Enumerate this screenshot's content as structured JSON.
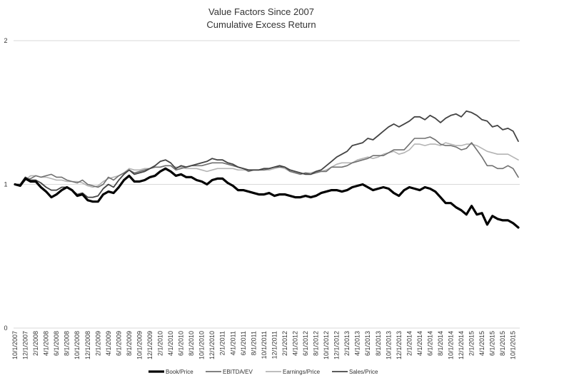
{
  "chart_data": {
    "type": "line",
    "title": "Value Factors Since 2007",
    "subtitle": "Cumulative Excess Return",
    "xlabel": "",
    "ylabel": "",
    "ylim": [
      0,
      2
    ],
    "yticks": [
      0,
      1,
      2
    ],
    "grid": true,
    "legend_position": "bottom",
    "x": [
      "10/1/2007",
      "11/1/2007",
      "12/1/2007",
      "1/1/2008",
      "2/1/2008",
      "3/1/2008",
      "4/1/2008",
      "5/1/2008",
      "6/1/2008",
      "7/1/2008",
      "8/1/2008",
      "9/1/2008",
      "10/1/2008",
      "11/1/2008",
      "12/1/2008",
      "1/1/2009",
      "2/1/2009",
      "3/1/2009",
      "4/1/2009",
      "5/1/2009",
      "6/1/2009",
      "7/1/2009",
      "8/1/2009",
      "9/1/2009",
      "10/1/2009",
      "11/1/2009",
      "12/1/2009",
      "1/1/2010",
      "2/1/2010",
      "3/1/2010",
      "4/1/2010",
      "5/1/2010",
      "6/1/2010",
      "7/1/2010",
      "8/1/2010",
      "9/1/2010",
      "10/1/2010",
      "11/1/2010",
      "12/1/2010",
      "1/1/2011",
      "2/1/2011",
      "3/1/2011",
      "4/1/2011",
      "5/1/2011",
      "6/1/2011",
      "7/1/2011",
      "8/1/2011",
      "9/1/2011",
      "10/1/2011",
      "11/1/2011",
      "12/1/2011",
      "1/1/2012",
      "2/1/2012",
      "3/1/2012",
      "4/1/2012",
      "5/1/2012",
      "6/1/2012",
      "7/1/2012",
      "8/1/2012",
      "9/1/2012",
      "10/1/2012",
      "11/1/2012",
      "12/1/2012",
      "1/1/2013",
      "2/1/2013",
      "3/1/2013",
      "4/1/2013",
      "5/1/2013",
      "6/1/2013",
      "7/1/2013",
      "8/1/2013",
      "9/1/2013",
      "10/1/2013",
      "11/1/2013",
      "12/1/2013",
      "1/1/2014",
      "2/1/2014",
      "3/1/2014",
      "4/1/2014",
      "5/1/2014",
      "6/1/2014",
      "7/1/2014",
      "8/1/2014",
      "9/1/2014",
      "10/1/2014",
      "11/1/2014",
      "12/1/2014",
      "1/1/2015",
      "2/1/2015",
      "3/1/2015",
      "4/1/2015",
      "5/1/2015",
      "6/1/2015",
      "7/1/2015",
      "8/1/2015",
      "9/1/2015",
      "10/1/2015",
      "11/1/2015"
    ],
    "tick_labels": [
      "10/1/2007",
      "12/1/2007",
      "2/1/2008",
      "4/1/2008",
      "6/1/2008",
      "8/1/2008",
      "10/1/2008",
      "12/1/2008",
      "2/1/2009",
      "4/1/2009",
      "6/1/2009",
      "8/1/2009",
      "10/1/2009",
      "12/1/2009",
      "2/1/2010",
      "4/1/2010",
      "6/1/2010",
      "8/1/2010",
      "10/1/2010",
      "12/1/2010",
      "2/1/2011",
      "4/1/2011",
      "6/1/2011",
      "8/1/2011",
      "10/1/2011",
      "12/1/2011",
      "2/1/2012",
      "4/1/2012",
      "6/1/2012",
      "8/1/2012",
      "10/1/2012",
      "12/1/2012",
      "2/1/2013",
      "4/1/2013",
      "6/1/2013",
      "8/1/2013",
      "10/1/2013",
      "12/1/2013",
      "2/1/2014",
      "4/1/2014",
      "6/1/2014",
      "8/1/2014",
      "10/1/2014",
      "12/1/2014",
      "2/1/2015",
      "4/1/2015",
      "6/1/2015",
      "8/1/2015",
      "10/1/2015"
    ],
    "series": [
      {
        "name": "Book/Price",
        "color": "#000000",
        "values": [
          1.0,
          0.99,
          1.04,
          1.02,
          1.02,
          0.98,
          0.95,
          0.91,
          0.93,
          0.96,
          0.98,
          0.96,
          0.92,
          0.93,
          0.89,
          0.88,
          0.88,
          0.93,
          0.95,
          0.94,
          0.98,
          1.03,
          1.06,
          1.02,
          1.02,
          1.03,
          1.05,
          1.06,
          1.09,
          1.11,
          1.09,
          1.06,
          1.07,
          1.05,
          1.05,
          1.03,
          1.02,
          1.0,
          1.03,
          1.04,
          1.04,
          1.01,
          0.99,
          0.96,
          0.96,
          0.95,
          0.94,
          0.93,
          0.93,
          0.94,
          0.92,
          0.93,
          0.93,
          0.92,
          0.91,
          0.91,
          0.92,
          0.91,
          0.92,
          0.94,
          0.95,
          0.96,
          0.96,
          0.95,
          0.96,
          0.98,
          0.99,
          1.0,
          0.98,
          0.96,
          0.97,
          0.98,
          0.97,
          0.94,
          0.92,
          0.96,
          0.98,
          0.97,
          0.96,
          0.98,
          0.97,
          0.95,
          0.91,
          0.87,
          0.87,
          0.84,
          0.82,
          0.79,
          0.85,
          0.79,
          0.8,
          0.72,
          0.78,
          0.76,
          0.75,
          0.75,
          0.73,
          0.7
        ]
      },
      {
        "name": "EBITDA/EV",
        "color": "#707070",
        "values": [
          1.0,
          0.99,
          1.03,
          1.04,
          1.06,
          1.05,
          1.06,
          1.07,
          1.05,
          1.05,
          1.03,
          1.02,
          1.01,
          1.03,
          1.0,
          0.99,
          0.98,
          1.0,
          1.05,
          1.03,
          1.06,
          1.08,
          1.1,
          1.08,
          1.09,
          1.1,
          1.11,
          1.12,
          1.12,
          1.13,
          1.13,
          1.1,
          1.11,
          1.12,
          1.13,
          1.13,
          1.13,
          1.14,
          1.15,
          1.15,
          1.15,
          1.14,
          1.13,
          1.12,
          1.11,
          1.09,
          1.1,
          1.1,
          1.1,
          1.11,
          1.12,
          1.12,
          1.12,
          1.09,
          1.08,
          1.07,
          1.08,
          1.07,
          1.08,
          1.09,
          1.09,
          1.12,
          1.12,
          1.12,
          1.13,
          1.15,
          1.16,
          1.17,
          1.18,
          1.2,
          1.2,
          1.2,
          1.22,
          1.24,
          1.24,
          1.24,
          1.28,
          1.32,
          1.32,
          1.32,
          1.33,
          1.31,
          1.28,
          1.27,
          1.27,
          1.26,
          1.24,
          1.25,
          1.29,
          1.24,
          1.19,
          1.13,
          1.13,
          1.11,
          1.11,
          1.13,
          1.11,
          1.05
        ]
      },
      {
        "name": "Earnings/Price",
        "color": "#b4b4b4",
        "values": [
          1.0,
          0.99,
          1.03,
          1.06,
          1.06,
          1.05,
          1.05,
          1.04,
          1.03,
          1.03,
          1.02,
          1.02,
          1.02,
          1.01,
          0.99,
          0.98,
          0.99,
          1.02,
          1.04,
          1.05,
          1.06,
          1.08,
          1.11,
          1.1,
          1.1,
          1.11,
          1.11,
          1.12,
          1.12,
          1.13,
          1.13,
          1.12,
          1.12,
          1.11,
          1.11,
          1.11,
          1.1,
          1.09,
          1.1,
          1.11,
          1.11,
          1.11,
          1.11,
          1.1,
          1.1,
          1.1,
          1.1,
          1.1,
          1.1,
          1.1,
          1.11,
          1.12,
          1.11,
          1.09,
          1.08,
          1.07,
          1.08,
          1.08,
          1.09,
          1.09,
          1.1,
          1.12,
          1.14,
          1.15,
          1.15,
          1.15,
          1.17,
          1.18,
          1.19,
          1.18,
          1.19,
          1.21,
          1.22,
          1.23,
          1.21,
          1.22,
          1.24,
          1.28,
          1.28,
          1.27,
          1.28,
          1.28,
          1.27,
          1.29,
          1.28,
          1.27,
          1.27,
          1.28,
          1.28,
          1.27,
          1.25,
          1.23,
          1.22,
          1.21,
          1.21,
          1.21,
          1.19,
          1.17
        ]
      },
      {
        "name": "Sales/Price",
        "color": "#444444",
        "values": [
          1.0,
          1.0,
          1.05,
          1.03,
          1.03,
          1.01,
          0.98,
          0.96,
          0.96,
          0.98,
          0.98,
          0.96,
          0.93,
          0.94,
          0.91,
          0.91,
          0.92,
          0.97,
          1.0,
          0.98,
          1.03,
          1.07,
          1.1,
          1.07,
          1.08,
          1.09,
          1.11,
          1.13,
          1.16,
          1.17,
          1.15,
          1.11,
          1.13,
          1.12,
          1.13,
          1.14,
          1.15,
          1.16,
          1.18,
          1.17,
          1.17,
          1.15,
          1.14,
          1.12,
          1.11,
          1.1,
          1.1,
          1.1,
          1.11,
          1.11,
          1.12,
          1.13,
          1.12,
          1.1,
          1.09,
          1.08,
          1.07,
          1.07,
          1.09,
          1.1,
          1.13,
          1.16,
          1.19,
          1.21,
          1.23,
          1.27,
          1.28,
          1.29,
          1.32,
          1.31,
          1.34,
          1.37,
          1.4,
          1.42,
          1.4,
          1.42,
          1.44,
          1.47,
          1.47,
          1.45,
          1.48,
          1.46,
          1.43,
          1.46,
          1.48,
          1.49,
          1.47,
          1.51,
          1.5,
          1.48,
          1.45,
          1.44,
          1.4,
          1.41,
          1.38,
          1.39,
          1.37,
          1.3
        ]
      }
    ]
  }
}
